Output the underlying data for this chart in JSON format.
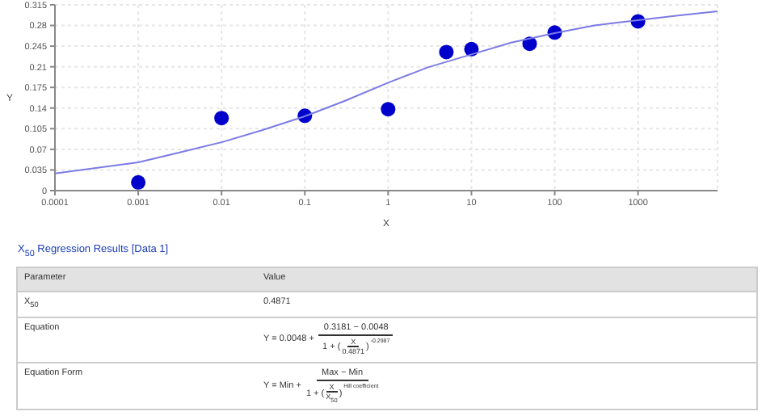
{
  "chart_data": [
    {
      "type": "scatter",
      "xlabel": "X",
      "ylabel": "Y",
      "log": "x",
      "grid": true,
      "marker": "circle",
      "xlim": [
        0.0001,
        9000
      ],
      "xticks": [
        0.0001,
        0.001,
        0.01,
        0.1,
        1,
        10,
        100,
        1000
      ],
      "ylim": [
        0,
        0.315
      ],
      "yticks": [
        0,
        0.035,
        0.07,
        0.105,
        0.14,
        0.175,
        0.21,
        0.245,
        0.28,
        0.315
      ],
      "series": [
        {
          "type": "scatter",
          "color": "#0000cc",
          "x": [
            0.001,
            0.01,
            0.1,
            1,
            5,
            10,
            50,
            100,
            1000
          ],
          "values": [
            0.014,
            0.123,
            0.127,
            0.138,
            0.235,
            0.24,
            0.249,
            0.268,
            0.287
          ]
        },
        {
          "type": "line",
          "color": "#7b7be6",
          "marker": "none",
          "x": [
            0.0001,
            0.001,
            0.003,
            0.01,
            0.03,
            0.1,
            0.3,
            1,
            3,
            10,
            30,
            100,
            300,
            1000,
            3000,
            9000
          ],
          "values": [
            0.029,
            0.048,
            0.064,
            0.082,
            0.102,
            0.126,
            0.152,
            0.183,
            0.209,
            0.231,
            0.251,
            0.267,
            0.28,
            0.289,
            0.297,
            0.304
          ]
        }
      ]
    },
    {
      "type": "other",
      "title": "X$_{50}$ Regression Results [Data 1]",
      "annotations": [
        "Parameter",
        "Value",
        "X$_{50}$",
        "0.4871",
        "Equation",
        "Y = 0.0048 +",
        "0.3181 − 0.0048",
        "1 + (",
        "X",
        "0.4871",
        ")",
        "-0.2987",
        "Equation Form",
        "Y = Min +",
        "Max − Min",
        "1 + (",
        "X",
        "X$_{50}$",
        ")",
        "Hill coefficient"
      ]
    }
  ]
}
